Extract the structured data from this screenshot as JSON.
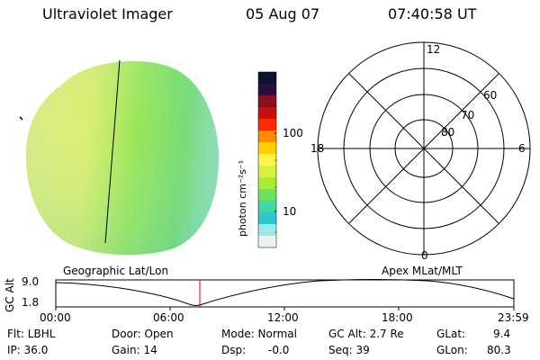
{
  "header": {
    "title": "Ultraviolet Imager",
    "date": "05 Aug 07",
    "time": "07:40:58 UT"
  },
  "colorbar": {
    "label": "photon cm⁻²s⁻¹",
    "ticks": [
      "100",
      "10"
    ],
    "colors": [
      "#101030",
      "#2a1040",
      "#8a1020",
      "#c81010",
      "#ff2a00",
      "#ff8c00",
      "#ffd000",
      "#fff24a",
      "#d8f040",
      "#a8ec30",
      "#70e060",
      "#40d8a0",
      "#30c8d0",
      "#a0e8e8",
      "#e8f4f4"
    ]
  },
  "polar": {
    "top_label": "12",
    "left_label": "18",
    "right_label": "6",
    "bottom_label": "0",
    "lat_labels": [
      "60",
      "70",
      "80"
    ]
  },
  "timeline": {
    "ylabel": "GC Alt",
    "ymax": "9.0",
    "ymin": "1.8",
    "left_title": "Geographic Lat/Lon",
    "right_title": "Apex MLat/MLT",
    "xticks": [
      "00:00",
      "06:00",
      "12:00",
      "18:00",
      "23:59"
    ]
  },
  "info": {
    "row1": [
      "Flt: LBHL",
      "Door: Open",
      "Mode: Normal",
      "GC Alt: 2.7 Re",
      "GLat:",
      "9.4"
    ],
    "row2": [
      "IP: 36.0",
      "Gain: 14",
      "Dsp:",
      "-0.0",
      "Seq: 39",
      "GLon:",
      "80.3"
    ]
  }
}
